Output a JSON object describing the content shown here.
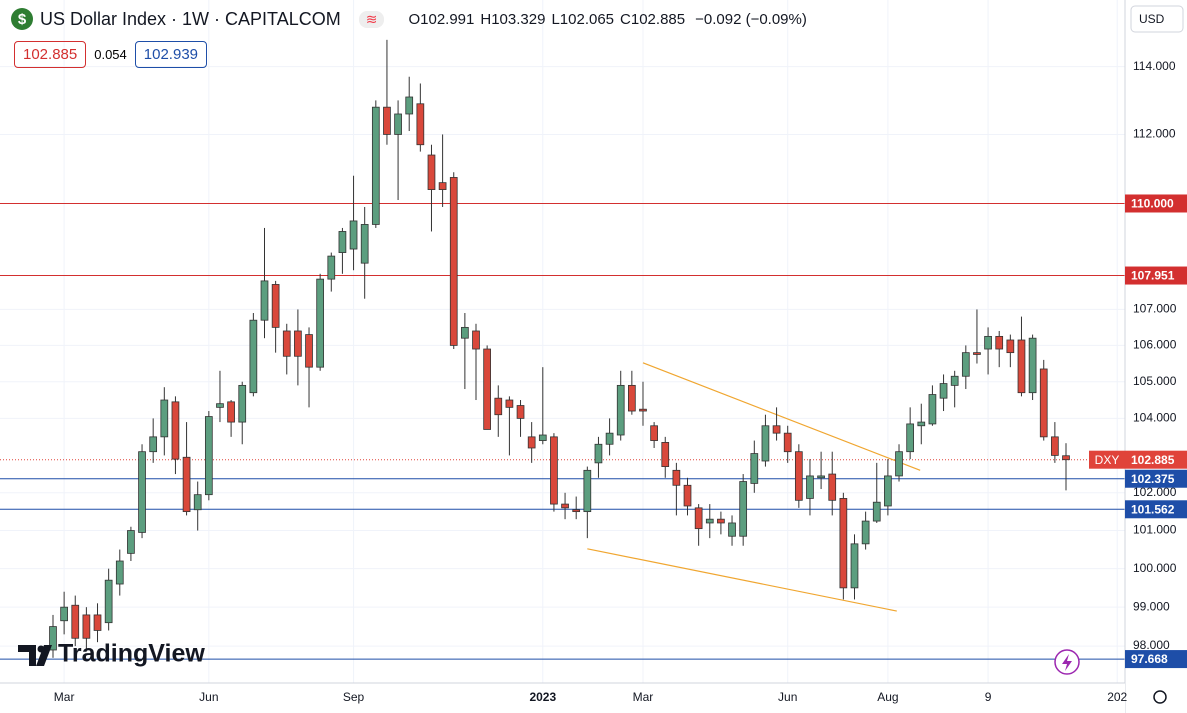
{
  "chart_data": {
    "type": "candlestick",
    "title": "US Dollar Index · 1W · CAPITALCOM",
    "ohlc_header": [
      {
        "label": "O",
        "value": 102.991
      },
      {
        "label": "H",
        "value": 103.329
      },
      {
        "label": "L",
        "value": 102.065
      },
      {
        "label": "C",
        "value": 102.885
      }
    ],
    "change": "−0.092 (−0.09%)",
    "sell_price": 102.885,
    "spread": 0.054,
    "buy_price": 102.939,
    "currency": "USD",
    "logo": "TradingView",
    "open": [
      97.9,
      98.65,
      99.05,
      98.8,
      98.8,
      98.6,
      99.6,
      100.4,
      100.95,
      103.1,
      103.5,
      104.45,
      102.95,
      101.55,
      101.95,
      104.3,
      104.45,
      103.9,
      104.7,
      106.7,
      107.7,
      106.4,
      106.4,
      106.3,
      105.4,
      107.85,
      108.6,
      108.7,
      108.3,
      109.4,
      112.8,
      112.0,
      112.6,
      112.9,
      111.4,
      110.6,
      110.75,
      106.2,
      106.4,
      105.9,
      104.55,
      104.5,
      104.35,
      103.5,
      103.4,
      103.5,
      101.7,
      101.55,
      101.5,
      102.8,
      103.3,
      103.55,
      104.9,
      104.25,
      103.8,
      103.35,
      102.6,
      102.2,
      101.6,
      101.2,
      101.3,
      100.85,
      100.85,
      102.25,
      102.85,
      103.8,
      103.6,
      103.1,
      101.85,
      102.4,
      102.5,
      101.85,
      99.5,
      100.65,
      101.25,
      101.65,
      102.45,
      103.1,
      103.8,
      103.85,
      104.55,
      104.9,
      105.15,
      105.8,
      105.9,
      106.25,
      106.15,
      106.15,
      104.7,
      105.35,
      103.5,
      102.991
    ],
    "high": [
      98.8,
      99.4,
      99.3,
      99.0,
      99.1,
      100.0,
      100.5,
      101.1,
      103.3,
      104.0,
      104.85,
      104.6,
      103.9,
      102.3,
      104.2,
      105.3,
      104.5,
      105.0,
      106.9,
      109.3,
      107.8,
      106.6,
      107.0,
      106.5,
      108.0,
      108.6,
      109.3,
      110.8,
      109.9,
      113.0,
      114.8,
      113.0,
      113.7,
      113.5,
      111.7,
      112.0,
      110.9,
      106.9,
      106.6,
      106.0,
      104.9,
      104.6,
      104.5,
      103.9,
      105.4,
      103.6,
      102.0,
      101.9,
      102.7,
      103.5,
      104.0,
      105.3,
      105.3,
      105.0,
      103.9,
      103.5,
      102.8,
      102.4,
      101.7,
      101.7,
      101.5,
      101.4,
      102.5,
      103.4,
      104.1,
      104.3,
      103.8,
      103.3,
      102.9,
      103.1,
      103.1,
      102.0,
      100.9,
      101.5,
      102.8,
      102.9,
      103.3,
      104.3,
      104.4,
      104.9,
      105.2,
      105.3,
      106.0,
      107.0,
      106.5,
      106.4,
      106.3,
      106.8,
      106.3,
      105.6,
      103.9,
      103.329
    ],
    "low": [
      97.7,
      98.3,
      98.0,
      97.9,
      98.1,
      98.4,
      99.3,
      100.2,
      100.8,
      102.8,
      103.0,
      102.5,
      101.4,
      101.0,
      101.8,
      103.9,
      103.5,
      103.3,
      104.6,
      106.2,
      105.8,
      105.2,
      104.9,
      104.3,
      105.3,
      107.5,
      108.0,
      108.1,
      107.3,
      109.3,
      111.7,
      110.1,
      112.1,
      111.5,
      109.2,
      109.9,
      105.9,
      104.8,
      104.5,
      103.7,
      103.5,
      103.0,
      103.5,
      102.8,
      103.3,
      101.5,
      101.3,
      101.3,
      100.8,
      102.4,
      103.0,
      103.4,
      104.1,
      103.8,
      103.2,
      102.4,
      101.4,
      101.4,
      100.6,
      100.8,
      100.9,
      100.6,
      100.6,
      102.0,
      102.7,
      103.4,
      102.8,
      101.6,
      101.4,
      102.1,
      101.4,
      99.2,
      99.2,
      100.5,
      101.2,
      101.4,
      102.3,
      102.9,
      103.3,
      103.8,
      104.2,
      104.3,
      104.8,
      105.5,
      105.2,
      105.4,
      105.4,
      104.6,
      104.5,
      103.4,
      102.8,
      102.065
    ],
    "close": [
      98.5,
      99.0,
      98.2,
      98.2,
      98.4,
      99.7,
      100.2,
      101.0,
      103.1,
      103.5,
      104.5,
      102.9,
      101.5,
      101.95,
      104.05,
      104.4,
      103.9,
      104.9,
      106.7,
      107.8,
      106.5,
      105.7,
      105.7,
      105.4,
      107.85,
      108.5,
      109.2,
      109.5,
      109.4,
      112.8,
      112.0,
      112.6,
      113.1,
      111.7,
      110.4,
      110.4,
      106.0,
      106.5,
      105.9,
      103.7,
      104.1,
      104.3,
      104.0,
      103.2,
      103.55,
      101.7,
      101.6,
      101.5,
      102.6,
      103.3,
      103.6,
      104.9,
      104.2,
      104.2,
      103.4,
      102.7,
      102.2,
      101.65,
      101.05,
      101.3,
      101.2,
      101.2,
      102.3,
      103.05,
      103.8,
      103.6,
      103.1,
      101.8,
      102.45,
      102.45,
      101.8,
      99.5,
      100.65,
      101.25,
      101.75,
      102.45,
      103.1,
      103.85,
      103.9,
      104.65,
      104.95,
      105.15,
      105.8,
      105.75,
      106.25,
      105.9,
      105.8,
      104.7,
      106.2,
      103.5,
      103.0,
      102.885
    ],
    "up_color": "#5c9e7f",
    "down_color": "#d9483b",
    "log_scale": true,
    "grid": true,
    "ylim": [
      97.06,
      116.0
    ],
    "yticks": [
      {
        "value": 98,
        "label": "98.000"
      },
      {
        "value": 99,
        "label": "99.000"
      },
      {
        "value": 100,
        "label": "100.000"
      },
      {
        "value": 101,
        "label": "101.000"
      },
      {
        "value": 102,
        "label": "102.000"
      },
      {
        "value": 104,
        "label": "104.000"
      },
      {
        "value": 105,
        "label": "105.000"
      },
      {
        "value": 106,
        "label": "106.000"
      },
      {
        "value": 107,
        "label": "107.000"
      },
      {
        "value": 112,
        "label": "112.000"
      },
      {
        "value": 114,
        "label": "114.000"
      }
    ],
    "xlim": [
      -4.76,
      96.3
    ],
    "xticks": [
      {
        "value": 1,
        "label": "Mar"
      },
      {
        "value": 14,
        "label": "Jun"
      },
      {
        "value": 27,
        "label": "Sep"
      },
      {
        "value": 44,
        "label": "2023"
      },
      {
        "value": 53,
        "label": "Mar"
      },
      {
        "value": 66,
        "label": "Jun"
      },
      {
        "value": 75,
        "label": "Aug"
      },
      {
        "value": 84,
        "label": "9"
      },
      {
        "value": 95.6,
        "label": "202"
      }
    ],
    "hlines": [
      {
        "value": 110,
        "label": "110.000",
        "color": "#d32f2f"
      },
      {
        "value": 107.951,
        "label": "107.951",
        "color": "#d32f2f"
      },
      {
        "value": 102.375,
        "label": "102.375",
        "color": "#1e4ea8"
      },
      {
        "value": 101.562,
        "label": "101.562",
        "color": "#1e4ea8"
      },
      {
        "value": 97.668,
        "label": "97.668",
        "color": "#1e4ea8"
      }
    ],
    "last_price": {
      "name": "DXY",
      "value": 102.885,
      "color": "#e0433a"
    },
    "trendlines": [
      {
        "x": [
          53,
          77.9
        ],
        "y": [
          105.52,
          102.6
        ],
        "color": "#f0a630"
      },
      {
        "x": [
          48,
          75.8
        ],
        "y": [
          100.52,
          98.9
        ],
        "color": "#f0a630"
      }
    ]
  }
}
